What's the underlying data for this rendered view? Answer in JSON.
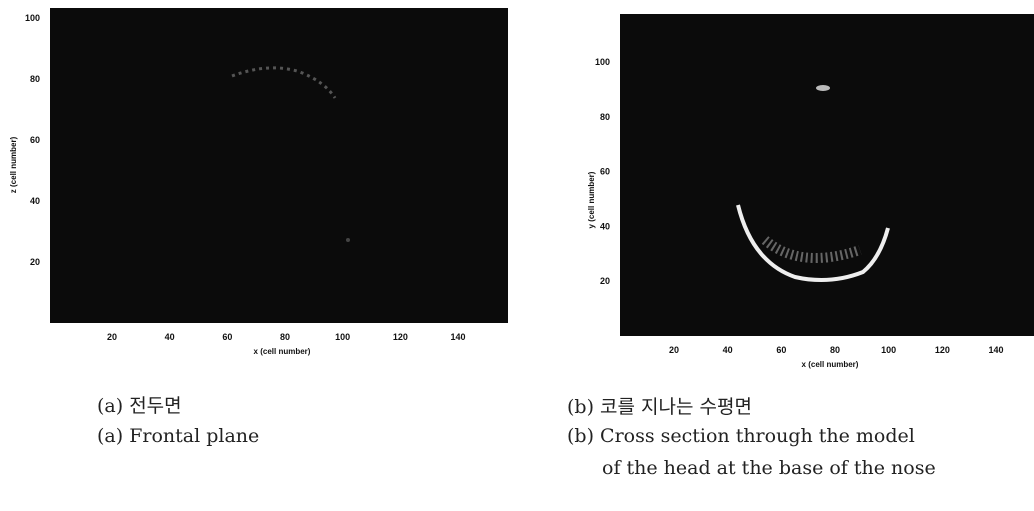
{
  "panels": [
    {
      "y_label": "z (cell number)",
      "x_label": "x (cell number)",
      "yticks": [
        100,
        80,
        60,
        40,
        20
      ],
      "xticks": [
        20,
        40,
        60,
        80,
        100,
        120,
        140
      ],
      "caption_ko": "(a) 전두면",
      "caption_en": [
        "(a) Frontal plane"
      ]
    },
    {
      "y_label": "y (cell number)",
      "x_label": "x (cell number)",
      "yticks": [
        100,
        80,
        60,
        40,
        20
      ],
      "xticks": [
        20,
        40,
        60,
        80,
        100,
        120,
        140
      ],
      "caption_ko": "(b) 코를 지나는 수평면",
      "caption_en": [
        "(b) Cross section through the model",
        "of the head at the base of the nose"
      ]
    }
  ]
}
